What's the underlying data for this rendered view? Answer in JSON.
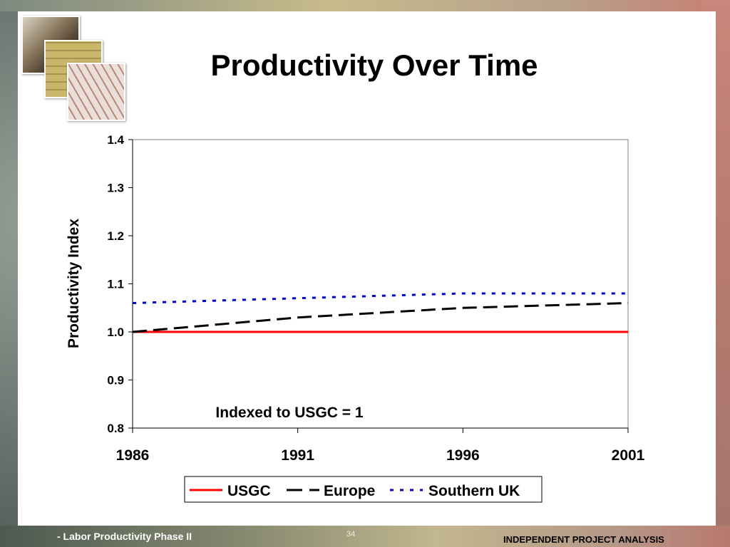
{
  "slide": {
    "title": "Productivity Over Time",
    "footer_left": "- Labor Productivity Phase II",
    "page_number": "34",
    "footer_right": "INDEPENDENT PROJECT ANALYSIS"
  },
  "chart_data": {
    "type": "line",
    "ylabel": "Productivity Index",
    "xlabel": "",
    "ylim": [
      0.8,
      1.4
    ],
    "xlim": [
      1986,
      2001
    ],
    "yticks": [
      "0.8",
      "0.9",
      "1.0",
      "1.1",
      "1.2",
      "1.3",
      "1.4"
    ],
    "xticks": [
      "1986",
      "1991",
      "1996",
      "2001"
    ],
    "annotation": "Indexed to USGC = 1",
    "legend_position": "bottom",
    "grid": false,
    "x": [
      1986,
      1991,
      1996,
      2001
    ],
    "series": [
      {
        "name": "USGC",
        "values": [
          1.0,
          1.0,
          1.0,
          1.0
        ],
        "color": "#ff0000",
        "style": "solid"
      },
      {
        "name": "Europe",
        "values": [
          1.0,
          1.03,
          1.05,
          1.06
        ],
        "color": "#000000",
        "style": "dashed"
      },
      {
        "name": "Southern UK",
        "values": [
          1.06,
          1.07,
          1.08,
          1.08
        ],
        "color": "#0000cc",
        "style": "dotted"
      }
    ]
  }
}
